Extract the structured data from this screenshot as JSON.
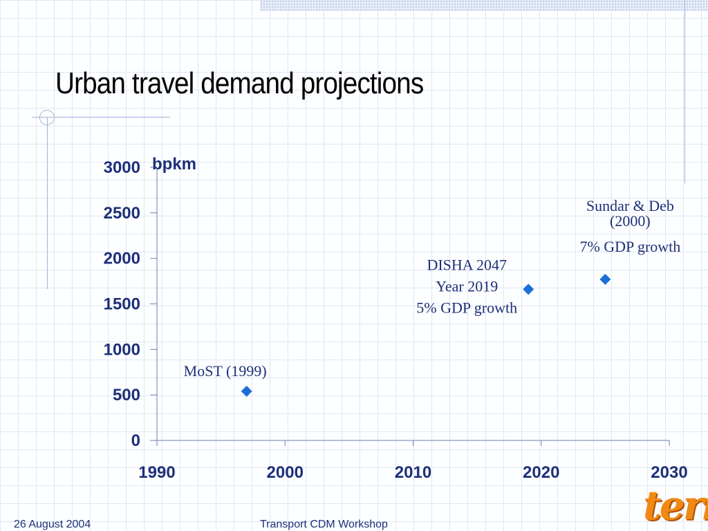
{
  "slide": {
    "title": "Urban travel demand projections",
    "footer_date": "26 August 2004",
    "footer_event": "Transport CDM Workshop",
    "logo_text": "teri"
  },
  "colors": {
    "axis_text": "#1c2f78",
    "marker": "#1c6fd8",
    "grid": "#dfe6f3",
    "logo": "#f08a14"
  },
  "chart_data": {
    "type": "scatter",
    "ylabel": "bpkm",
    "xlim": [
      1990,
      2030
    ],
    "ylim": [
      0,
      3000
    ],
    "xticks": [
      1990,
      2000,
      2010,
      2020,
      2030
    ],
    "yticks": [
      0,
      500,
      1000,
      1500,
      2000,
      2500,
      3000
    ],
    "points": [
      {
        "x": 1997,
        "y": 540,
        "label_lines": [
          "MoST (1999)"
        ]
      },
      {
        "x": 2019,
        "y": 1660,
        "label_lines": [
          "DISHA 2047",
          "Year 2019",
          "5% GDP growth"
        ]
      },
      {
        "x": 2025,
        "y": 1770,
        "label_lines": [
          "Sundar & Deb",
          "(2000)",
          "7% GDP growth"
        ]
      }
    ]
  }
}
